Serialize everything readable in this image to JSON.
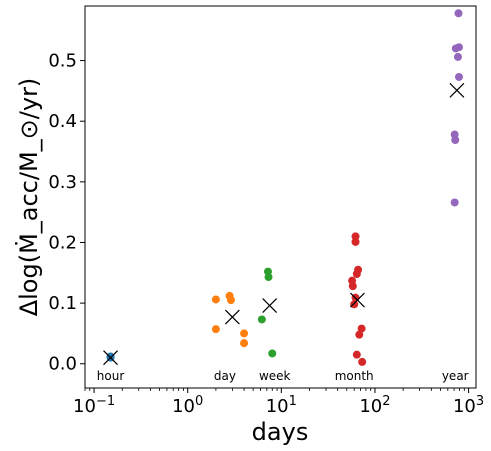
{
  "chart_data": {
    "type": "scatter",
    "title": "",
    "xlabel": "days",
    "ylabel": "Δlog(Ṁ_acc/M_⊙/yr)",
    "xscale": "log",
    "xlim": [
      0.08,
      1200
    ],
    "ylim": [
      -0.04,
      0.59
    ],
    "grid": false,
    "x_ticks": [
      {
        "value": 0.1,
        "base": "10",
        "exp": "−1"
      },
      {
        "value": 1,
        "base": "10",
        "exp": "0"
      },
      {
        "value": 10,
        "base": "10",
        "exp": "1"
      },
      {
        "value": 100,
        "base": "10",
        "exp": "2"
      },
      {
        "value": 1000,
        "base": "10",
        "exp": "3"
      }
    ],
    "y_ticks": [
      {
        "value": 0.0,
        "label": "0.0"
      },
      {
        "value": 0.1,
        "label": "0.1"
      },
      {
        "value": 0.2,
        "label": "0.2"
      },
      {
        "value": 0.3,
        "label": "0.3"
      },
      {
        "value": 0.4,
        "label": "0.4"
      },
      {
        "value": 0.5,
        "label": "0.5"
      }
    ],
    "series": [
      {
        "color": "#1f77b4",
        "points": [
          [
            0.15,
            0.01
          ],
          [
            0.15,
            0.012
          ]
        ]
      },
      {
        "color": "#ff7f0e",
        "points": [
          [
            2.0,
            0.106
          ],
          [
            2.8,
            0.112
          ],
          [
            2.9,
            0.105
          ],
          [
            2.0,
            0.057
          ],
          [
            4.0,
            0.05
          ],
          [
            4.0,
            0.034
          ]
        ]
      },
      {
        "color": "#2ca02c",
        "points": [
          [
            7.2,
            0.152
          ],
          [
            7.3,
            0.143
          ],
          [
            6.2,
            0.073
          ],
          [
            8.0,
            0.017
          ]
        ]
      },
      {
        "color": "#d62728",
        "points": [
          [
            62,
            0.21
          ],
          [
            62,
            0.201
          ],
          [
            66,
            0.155
          ],
          [
            64,
            0.148
          ],
          [
            57,
            0.137
          ],
          [
            58,
            0.128
          ],
          [
            62,
            0.109
          ],
          [
            60,
            0.098
          ],
          [
            72,
            0.058
          ],
          [
            68,
            0.048
          ],
          [
            64,
            0.015
          ],
          [
            73,
            0.003
          ]
        ]
      },
      {
        "color": "#9467bd",
        "points": [
          [
            780,
            0.578
          ],
          [
            790,
            0.522
          ],
          [
            730,
            0.52
          ],
          [
            770,
            0.506
          ],
          [
            790,
            0.473
          ],
          [
            710,
            0.378
          ],
          [
            720,
            0.369
          ],
          [
            710,
            0.266
          ]
        ]
      }
    ],
    "means": [
      {
        "x": 0.15,
        "y": 0.01
      },
      {
        "x": 3.0,
        "y": 0.077
      },
      {
        "x": 7.5,
        "y": 0.096
      },
      {
        "x": 65,
        "y": 0.105
      },
      {
        "x": 750,
        "y": 0.451
      }
    ],
    "annotations": [
      {
        "text": "hour",
        "x": 0.15
      },
      {
        "text": "day",
        "x": 2.5
      },
      {
        "text": "week",
        "x": 8.5
      },
      {
        "text": "month",
        "x": 60
      },
      {
        "text": "year",
        "x": 720
      }
    ]
  }
}
